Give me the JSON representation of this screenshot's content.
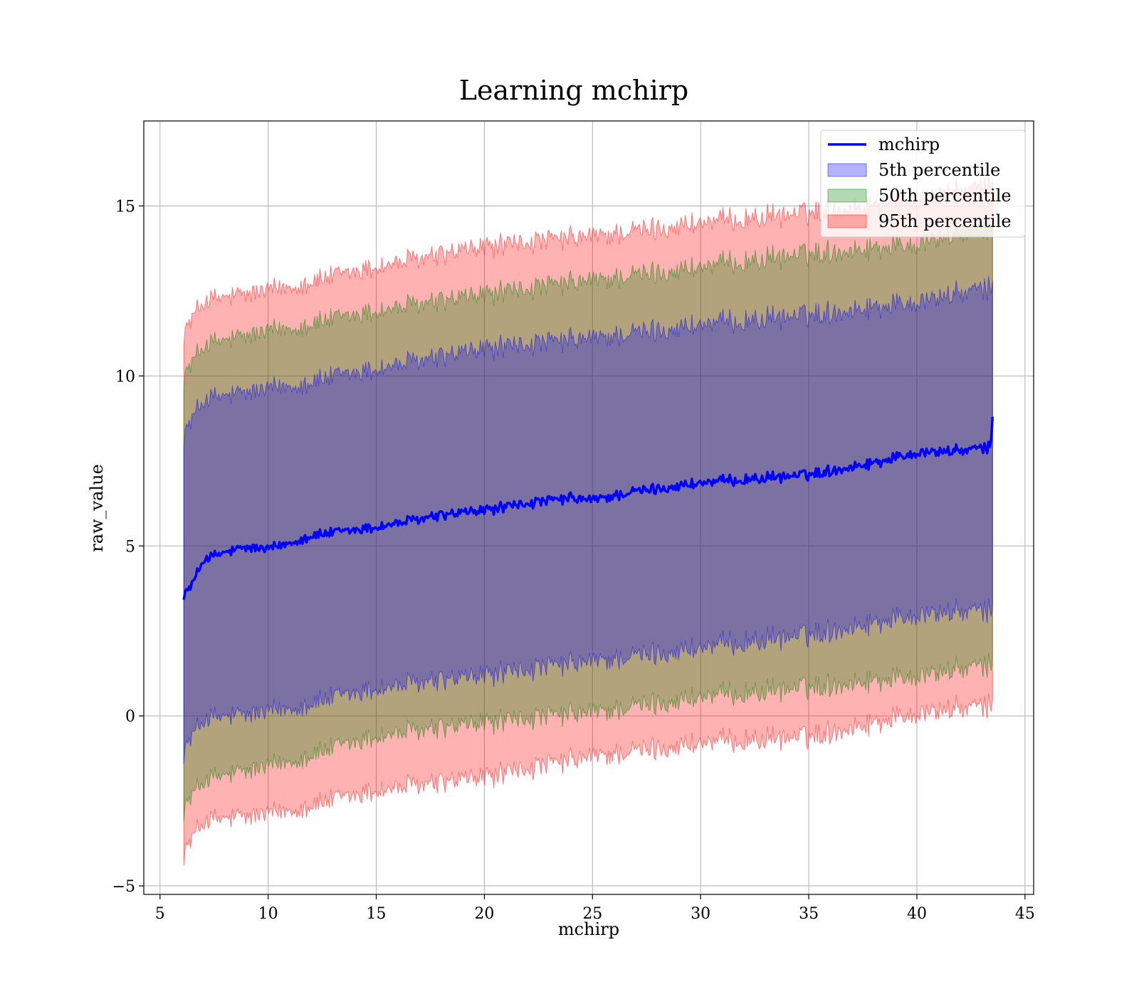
{
  "chart_data": {
    "type": "area",
    "title": "Learning mchirp",
    "xlabel": "mchirp",
    "ylabel": "raw_value",
    "xlim": [
      4.25,
      45.4
    ],
    "ylim": [
      -5.25,
      17.5
    ],
    "xticks": [
      5,
      10,
      15,
      20,
      25,
      30,
      35,
      40,
      45
    ],
    "yticks": [
      -5,
      0,
      5,
      10,
      15
    ],
    "grid": true,
    "legend_position": "top-right",
    "x_range": [
      6.1,
      43.5
    ],
    "series": [
      {
        "name": "mchirp",
        "kind": "line",
        "color": "#0000ff",
        "x": [
          6.1,
          6.3,
          6.6,
          7.0,
          7.5,
          8.0,
          9.0,
          10.0,
          12.0,
          15.0,
          18.0,
          20.0,
          22.0,
          24.0,
          25.0,
          27.0,
          30.0,
          33.0,
          35.0,
          38.0,
          40.0,
          42.0,
          43.4,
          43.5
        ],
        "y": [
          3.6,
          3.7,
          4.0,
          4.6,
          4.7,
          4.8,
          4.95,
          4.9,
          5.3,
          5.55,
          5.9,
          6.05,
          6.25,
          6.4,
          6.35,
          6.6,
          6.85,
          7.0,
          7.1,
          7.45,
          7.75,
          7.8,
          7.9,
          8.8
        ]
      },
      {
        "name": "5th percentile",
        "kind": "band",
        "color": "#0000ff",
        "x": [
          6.1,
          7,
          10,
          15,
          20,
          25,
          30,
          35,
          40,
          43.5
        ],
        "lower": [
          -1.0,
          -0.1,
          0.1,
          0.8,
          1.2,
          1.6,
          2.0,
          2.4,
          3.0,
          3.1
        ],
        "upper": [
          8.3,
          9.3,
          9.6,
          10.2,
          10.8,
          11.1,
          11.5,
          11.8,
          12.2,
          12.6
        ]
      },
      {
        "name": "50th percentile",
        "kind": "band",
        "color": "#008000",
        "x": [
          6.1,
          7,
          10,
          15,
          20,
          25,
          30,
          35,
          40,
          43.5
        ],
        "lower": [
          -2.7,
          -1.9,
          -1.5,
          -0.6,
          -0.2,
          0.1,
          0.55,
          0.85,
          1.2,
          1.5
        ],
        "upper": [
          10.0,
          10.9,
          11.3,
          11.9,
          12.4,
          12.8,
          13.2,
          13.6,
          13.9,
          14.4
        ]
      },
      {
        "name": "95th percentile",
        "kind": "band",
        "color": "#ff0000",
        "x": [
          6.1,
          7,
          10,
          15,
          20,
          25,
          30,
          35,
          40,
          43.5
        ],
        "lower": [
          -4.0,
          -3.1,
          -2.9,
          -2.2,
          -1.8,
          -1.2,
          -0.8,
          -0.6,
          0.1,
          0.3
        ],
        "upper": [
          11.3,
          12.2,
          12.5,
          13.2,
          13.8,
          14.1,
          14.5,
          14.8,
          15.2,
          15.6
        ]
      }
    ]
  }
}
